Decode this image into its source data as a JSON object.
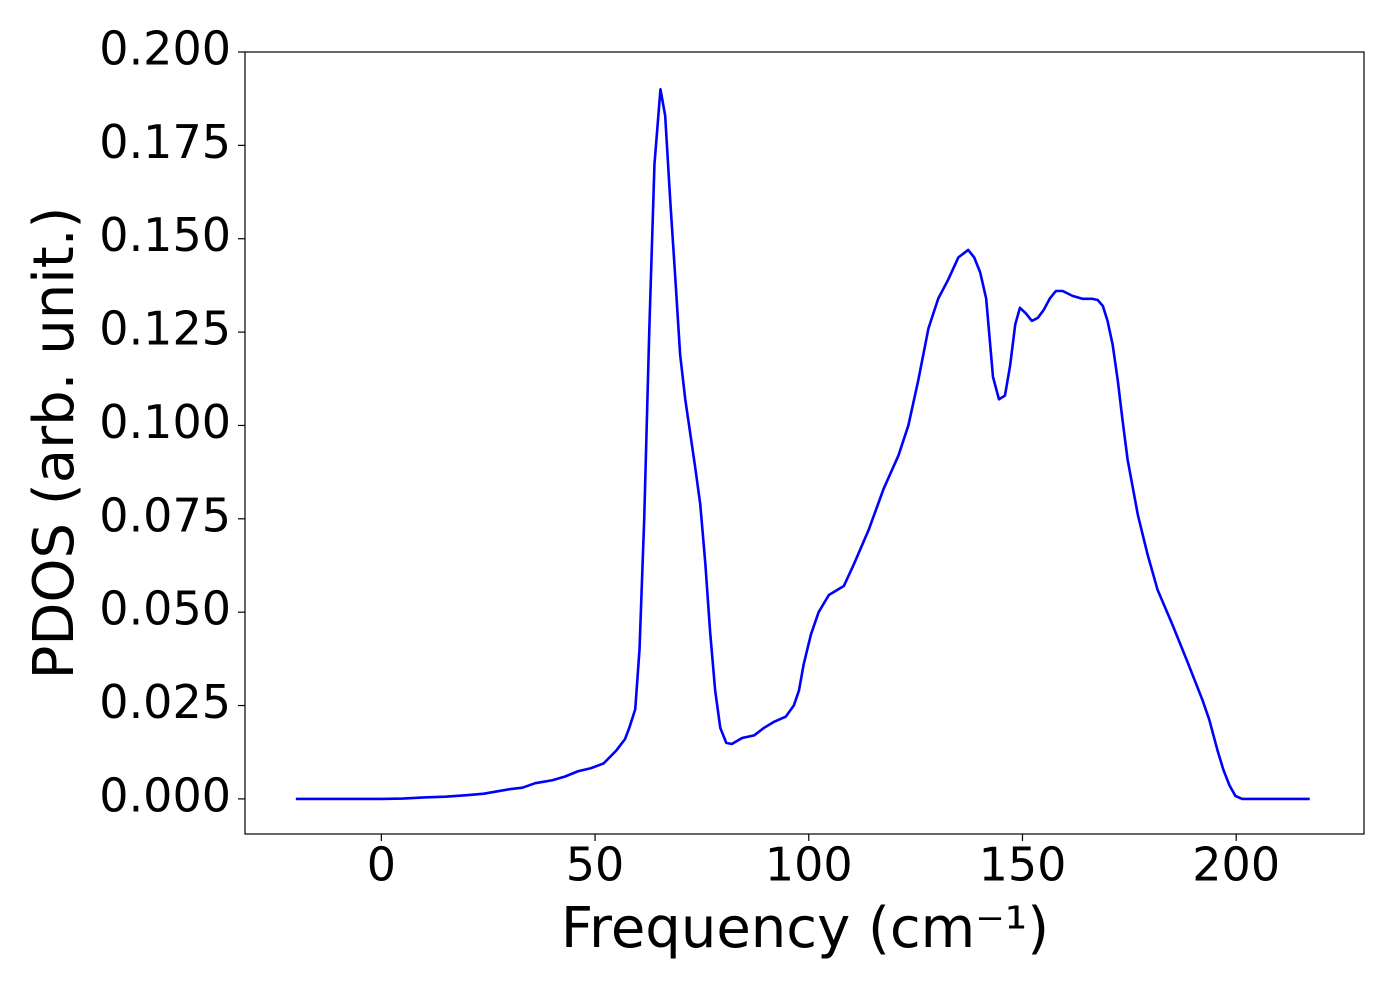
{
  "chart_data": {
    "type": "line",
    "xlabel": "Frequency (cm⁻¹)",
    "ylabel": "PDOS (arb. unit.)",
    "x": [
      -20,
      -10,
      0,
      5,
      10,
      15,
      20,
      24,
      27,
      30,
      33,
      36,
      40,
      43,
      46,
      49,
      52,
      55,
      57,
      58,
      59.4,
      60.4,
      61.5,
      62.7,
      63.9,
      65.3,
      66.4,
      67.6,
      68.8,
      69.9,
      71.1,
      73.4,
      74.6,
      75.8,
      76.9,
      78.1,
      79.3,
      80.7,
      82,
      84.4,
      87.2,
      89.5,
      91.8,
      94.6,
      96.5,
      97.7,
      98.8,
      100.5,
      102.3,
      104.7,
      108.2,
      110.5,
      114,
      117.5,
      121,
      123.3,
      125.6,
      128,
      130.3,
      132.6,
      135,
      137.3,
      138.7,
      140.1,
      141.5,
      143.1,
      144.5,
      145.9,
      147.1,
      148.3,
      149.4,
      150.8,
      152.2,
      153.6,
      155,
      156.4,
      157.8,
      159.4,
      161.7,
      164.1,
      166.4,
      167.6,
      168.8,
      169.9,
      171.1,
      172.3,
      173.4,
      174.6,
      177,
      179.3,
      181.6,
      185.1,
      188.6,
      192.1,
      193.7,
      195.6,
      197,
      198.4,
      199.8,
      201.4,
      210,
      217.2
    ],
    "series": [
      {
        "color": "#0000ff",
        "values": [
          0,
          0,
          0,
          0.0001,
          0.0004,
          0.0006,
          0.001,
          0.0014,
          0.002,
          0.0026,
          0.003,
          0.0042,
          0.005,
          0.006,
          0.0074,
          0.0082,
          0.0095,
          0.013,
          0.016,
          0.019,
          0.024,
          0.04,
          0.075,
          0.126,
          0.17,
          0.19,
          0.183,
          0.16,
          0.139,
          0.119,
          0.107,
          0.089,
          0.079,
          0.063,
          0.045,
          0.029,
          0.019,
          0.015,
          0.0147,
          0.0163,
          0.017,
          0.019,
          0.0206,
          0.022,
          0.025,
          0.029,
          0.036,
          0.044,
          0.05,
          0.0546,
          0.057,
          0.0627,
          0.072,
          0.083,
          0.092,
          0.1,
          0.112,
          0.126,
          0.134,
          0.139,
          0.145,
          0.147,
          0.145,
          0.141,
          0.134,
          0.113,
          0.107,
          0.108,
          0.116,
          0.127,
          0.1315,
          0.13,
          0.128,
          0.1288,
          0.131,
          0.134,
          0.136,
          0.136,
          0.1347,
          0.1339,
          0.1339,
          0.1336,
          0.132,
          0.128,
          0.1216,
          0.112,
          0.1015,
          0.0908,
          0.076,
          0.0653,
          0.056,
          0.0466,
          0.0367,
          0.0265,
          0.0212,
          0.0131,
          0.0078,
          0.0037,
          0.0008,
          0,
          0,
          0
        ]
      }
    ],
    "xlim": [
      -31.9,
      229.9
    ],
    "ylim": [
      -0.0094,
      0.2
    ],
    "xticks": [
      0,
      50,
      100,
      150,
      200
    ],
    "yticks": [
      {
        "value": 0,
        "label": "0.000"
      },
      {
        "value": 0.025,
        "label": "0.025"
      },
      {
        "value": 0.05,
        "label": "0.050"
      },
      {
        "value": 0.075,
        "label": "0.075"
      },
      {
        "value": 0.1,
        "label": "0.100"
      },
      {
        "value": 0.125,
        "label": "0.125"
      },
      {
        "value": 0.15,
        "label": "0.150"
      },
      {
        "value": 0.175,
        "label": "0.175"
      },
      {
        "value": 0.2,
        "label": "0.200"
      }
    ],
    "grid": false
  }
}
